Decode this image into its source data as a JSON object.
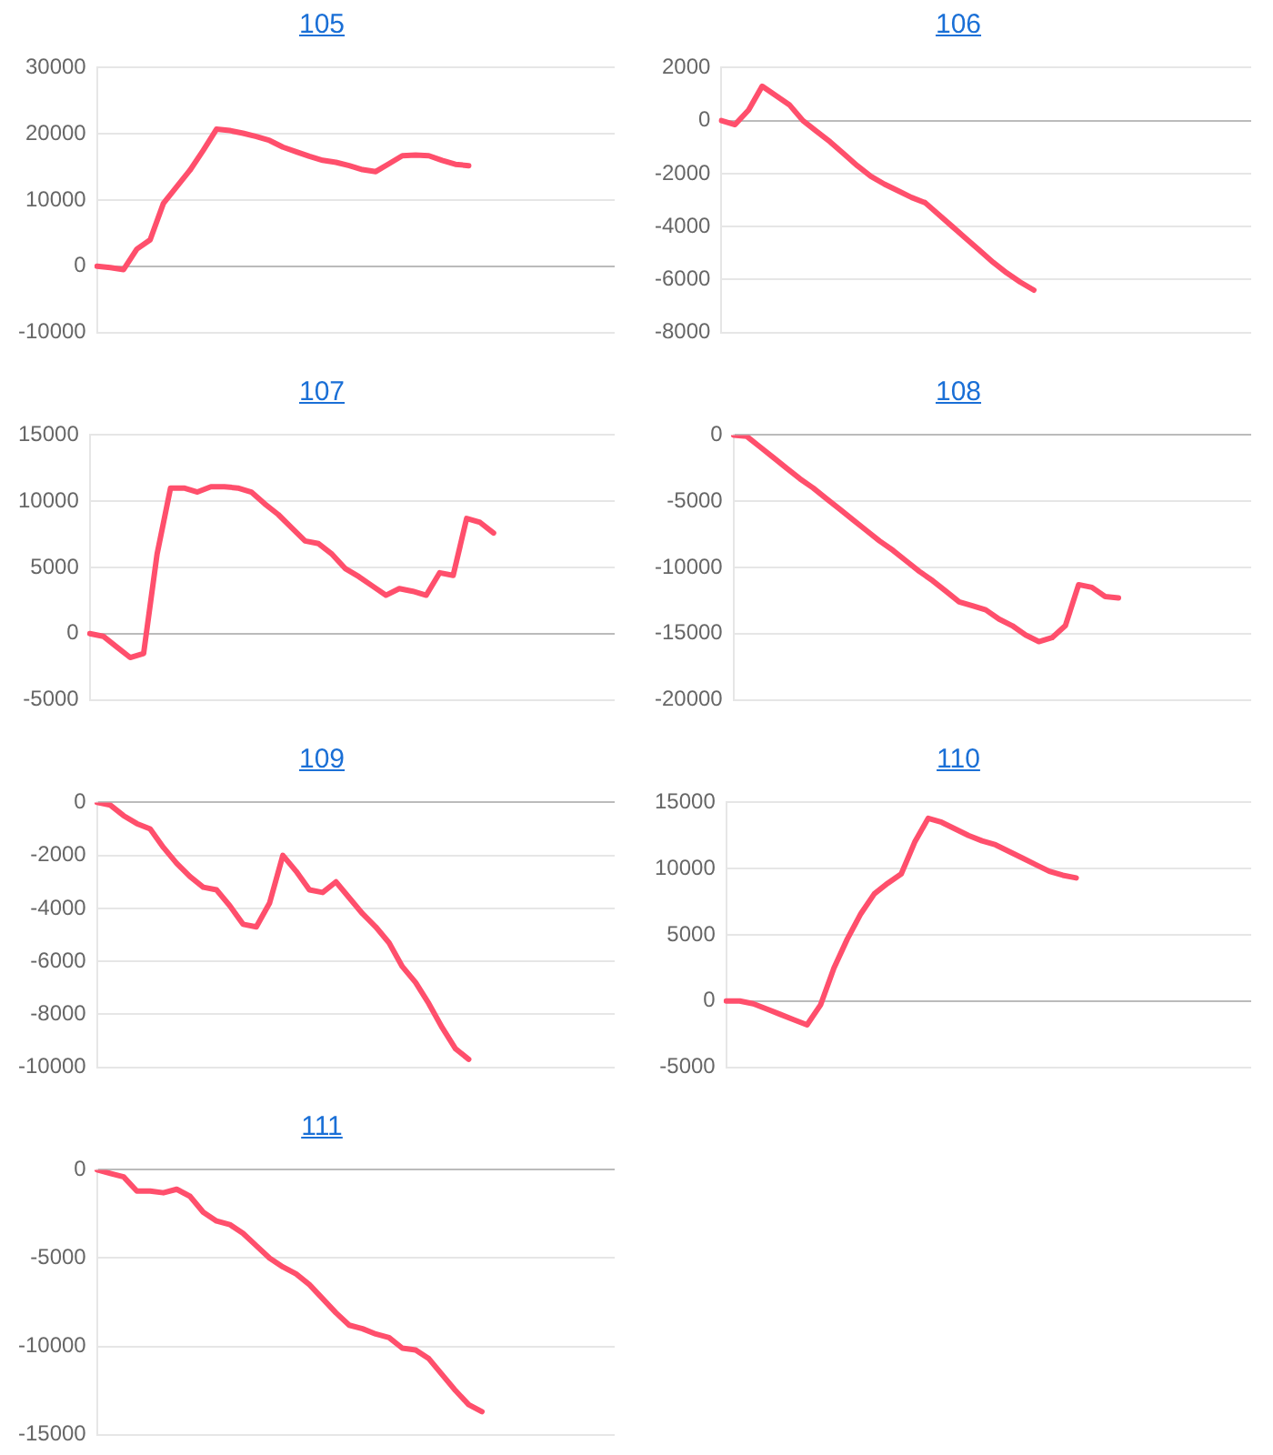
{
  "chart_data": [
    {
      "type": "line",
      "title": "105",
      "categories": [
        null,
        null,
        null,
        null,
        null,
        null,
        null,
        null,
        null,
        null,
        null,
        null,
        null,
        null,
        null,
        null,
        null,
        null,
        null,
        null,
        null,
        null,
        null,
        null,
        null,
        null,
        null,
        null,
        null,
        null,
        null,
        null,
        null,
        null,
        null,
        null,
        null,
        null,
        null,
        null
      ],
      "series": [
        {
          "color": "#ff4f6c",
          "values": [
            0,
            -200,
            -500,
            2600,
            4000,
            9500,
            12000,
            14500,
            17500,
            20700,
            20500,
            20100,
            19600,
            19000,
            18000,
            17300,
            16600,
            16000,
            15700,
            15200,
            14600,
            14300,
            15500,
            16700,
            16800,
            16700,
            16000,
            15400,
            15200,
            null,
            null,
            null,
            null,
            null,
            null,
            null,
            null,
            null,
            null,
            null
          ]
        }
      ],
      "ylim": [
        -10000,
        30000
      ],
      "yticks": [
        -10000,
        0,
        10000,
        20000,
        30000
      ],
      "grid": "y",
      "legend": false,
      "tick_labels": "y",
      "marker": "none",
      "line_style": "solid"
    },
    {
      "type": "line",
      "title": "106",
      "categories": [
        null,
        null,
        null,
        null,
        null,
        null,
        null,
        null,
        null,
        null,
        null,
        null,
        null,
        null,
        null,
        null,
        null,
        null,
        null,
        null,
        null,
        null,
        null,
        null,
        null,
        null,
        null,
        null,
        null,
        null,
        null,
        null,
        null,
        null,
        null,
        null,
        null,
        null,
        null,
        null
      ],
      "series": [
        {
          "color": "#ff4f6c",
          "values": [
            0,
            -150,
            400,
            1300,
            950,
            600,
            0,
            -400,
            -800,
            -1250,
            -1700,
            -2100,
            -2400,
            -2650,
            -2900,
            -3100,
            -3550,
            -4000,
            -4450,
            -4900,
            -5350,
            -5750,
            -6100,
            -6400,
            null,
            null,
            null,
            null,
            null,
            null,
            null,
            null,
            null,
            null,
            null,
            null,
            null,
            null,
            null,
            null
          ]
        }
      ],
      "ylim": [
        -8000,
        2000
      ],
      "yticks": [
        -8000,
        -6000,
        -4000,
        -2000,
        0,
        2000
      ],
      "grid": "y",
      "legend": false,
      "tick_labels": "y",
      "marker": "none",
      "line_style": "solid"
    },
    {
      "type": "line",
      "title": "107",
      "categories": [
        null,
        null,
        null,
        null,
        null,
        null,
        null,
        null,
        null,
        null,
        null,
        null,
        null,
        null,
        null,
        null,
        null,
        null,
        null,
        null,
        null,
        null,
        null,
        null,
        null,
        null,
        null,
        null,
        null,
        null,
        null,
        null,
        null,
        null,
        null,
        null,
        null,
        null,
        null,
        null
      ],
      "series": [
        {
          "color": "#ff4f6c",
          "values": [
            0,
            -200,
            -1000,
            -1800,
            -1500,
            6000,
            11000,
            11000,
            10700,
            11100,
            11100,
            11000,
            10700,
            9800,
            9000,
            8000,
            7000,
            6800,
            6000,
            4900,
            4300,
            3600,
            2900,
            3400,
            3200,
            2900,
            4600,
            4400,
            8700,
            8400,
            7600,
            null,
            null,
            null,
            null,
            null,
            null,
            null,
            null,
            null
          ]
        }
      ],
      "ylim": [
        -5000,
        15000
      ],
      "yticks": [
        -5000,
        0,
        5000,
        10000,
        15000
      ],
      "grid": "y",
      "legend": false,
      "tick_labels": "y",
      "marker": "none",
      "line_style": "solid"
    },
    {
      "type": "line",
      "title": "108",
      "categories": [
        null,
        null,
        null,
        null,
        null,
        null,
        null,
        null,
        null,
        null,
        null,
        null,
        null,
        null,
        null,
        null,
        null,
        null,
        null,
        null,
        null,
        null,
        null,
        null,
        null,
        null,
        null,
        null,
        null,
        null,
        null,
        null,
        null,
        null,
        null,
        null,
        null,
        null,
        null,
        null
      ],
      "series": [
        {
          "color": "#ff4f6c",
          "values": [
            0,
            -100,
            -900,
            -1700,
            -2500,
            -3300,
            -4000,
            -4800,
            -5600,
            -6400,
            -7200,
            -8000,
            -8700,
            -9500,
            -10300,
            -11000,
            -11800,
            -12600,
            -12900,
            -13200,
            -13900,
            -14400,
            -15100,
            -15600,
            -15300,
            -14400,
            -11300,
            -11500,
            -12200,
            -12300,
            null,
            null,
            null,
            null,
            null,
            null,
            null,
            null,
            null,
            null
          ]
        }
      ],
      "ylim": [
        -20000,
        0
      ],
      "yticks": [
        -20000,
        -15000,
        -10000,
        -5000,
        0
      ],
      "grid": "y",
      "legend": false,
      "tick_labels": "y",
      "marker": "none",
      "line_style": "solid"
    },
    {
      "type": "line",
      "title": "109",
      "categories": [
        null,
        null,
        null,
        null,
        null,
        null,
        null,
        null,
        null,
        null,
        null,
        null,
        null,
        null,
        null,
        null,
        null,
        null,
        null,
        null,
        null,
        null,
        null,
        null,
        null,
        null,
        null,
        null,
        null,
        null,
        null,
        null,
        null,
        null,
        null,
        null,
        null,
        null,
        null,
        null
      ],
      "series": [
        {
          "color": "#ff4f6c",
          "values": [
            0,
            -100,
            -500,
            -800,
            -1000,
            -1700,
            -2300,
            -2800,
            -3200,
            -3300,
            -3900,
            -4600,
            -4700,
            -3800,
            -2000,
            -2600,
            -3300,
            -3400,
            -3000,
            -3600,
            -4200,
            -4700,
            -5300,
            -6200,
            -6800,
            -7600,
            -8500,
            -9300,
            -9700,
            null,
            null,
            null,
            null,
            null,
            null,
            null,
            null,
            null,
            null,
            null
          ]
        }
      ],
      "ylim": [
        -10000,
        0
      ],
      "yticks": [
        -10000,
        -8000,
        -6000,
        -4000,
        -2000,
        0
      ],
      "grid": "y",
      "legend": false,
      "tick_labels": "y",
      "marker": "none",
      "line_style": "solid"
    },
    {
      "type": "line",
      "title": "110",
      "categories": [
        null,
        null,
        null,
        null,
        null,
        null,
        null,
        null,
        null,
        null,
        null,
        null,
        null,
        null,
        null,
        null,
        null,
        null,
        null,
        null,
        null,
        null,
        null,
        null,
        null,
        null,
        null,
        null,
        null,
        null,
        null,
        null,
        null,
        null,
        null,
        null,
        null,
        null,
        null,
        null
      ],
      "series": [
        {
          "color": "#ff4f6c",
          "values": [
            0,
            0,
            -200,
            -600,
            -1000,
            -1400,
            -1800,
            -300,
            2500,
            4700,
            6600,
            8100,
            8900,
            9600,
            12000,
            13800,
            13500,
            13000,
            12500,
            12100,
            11800,
            11300,
            10800,
            10300,
            9800,
            9500,
            9300,
            null,
            null,
            null,
            null,
            null,
            null,
            null,
            null,
            null,
            null,
            null,
            null,
            null
          ]
        }
      ],
      "ylim": [
        -5000,
        15000
      ],
      "yticks": [
        -5000,
        0,
        5000,
        10000,
        15000
      ],
      "grid": "y",
      "legend": false,
      "tick_labels": "y",
      "marker": "none",
      "line_style": "solid"
    },
    {
      "type": "line",
      "title": "111",
      "categories": [
        null,
        null,
        null,
        null,
        null,
        null,
        null,
        null,
        null,
        null,
        null,
        null,
        null,
        null,
        null,
        null,
        null,
        null,
        null,
        null,
        null,
        null,
        null,
        null,
        null,
        null,
        null,
        null,
        null,
        null,
        null,
        null,
        null,
        null,
        null,
        null,
        null,
        null,
        null,
        null
      ],
      "series": [
        {
          "color": "#ff4f6c",
          "values": [
            0,
            -200,
            -400,
            -1200,
            -1200,
            -1300,
            -1100,
            -1500,
            -2400,
            -2900,
            -3100,
            -3600,
            -4300,
            -5000,
            -5500,
            -5900,
            -6500,
            -7300,
            -8100,
            -8800,
            -9000,
            -9300,
            -9500,
            -10100,
            -10200,
            -10700,
            -11600,
            -12500,
            -13300,
            -13700,
            null,
            null,
            null,
            null,
            null,
            null,
            null,
            null,
            null,
            null
          ]
        }
      ],
      "ylim": [
        -15000,
        0
      ],
      "yticks": [
        -15000,
        -10000,
        -5000,
        0
      ],
      "grid": "y",
      "legend": false,
      "tick_labels": "y",
      "marker": "none",
      "line_style": "solid"
    }
  ]
}
